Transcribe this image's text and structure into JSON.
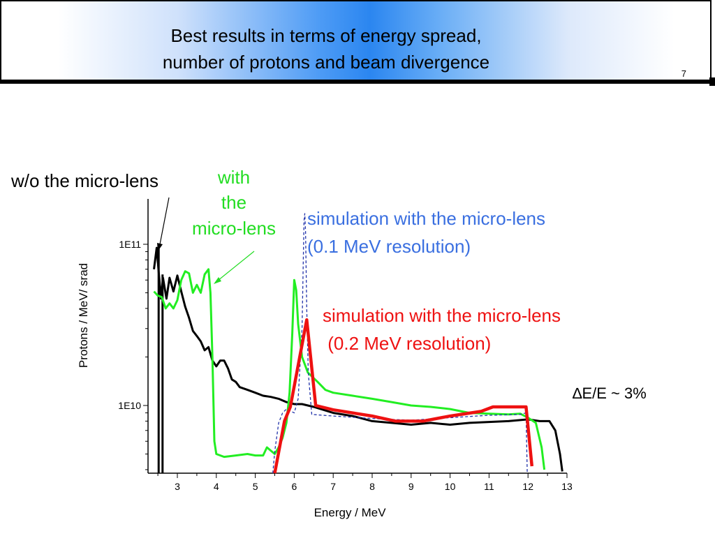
{
  "header": {
    "title_line1": "Best results in terms of energy spread,",
    "title_line2": "number of protons and beam divergence",
    "slide_number": "7"
  },
  "annotations": {
    "without_lens": "w/o the micro-lens",
    "with_lens_line1": "with",
    "with_lens_line2": "the",
    "with_lens_line3": "micro-lens",
    "sim1_line1": "simulation with the micro-lens",
    "sim1_line2": "(0.1 MeV resolution)",
    "sim2_line1": "simulation with the micro-lens",
    "sim2_line2": " (0.2 MeV resolution)",
    "delta_e": "∆E/E  ~ 3%"
  },
  "colors": {
    "without_lens": "#000000",
    "with_lens": "#22ee22",
    "sim_01": "#2233aa",
    "sim_02": "#ee1111",
    "sim1_label": "#3a6fe0",
    "with_label": "#22dd22"
  },
  "chart_data": {
    "type": "line",
    "title": "",
    "xlabel": "Energy / MeV",
    "ylabel": "Protons / MeV/ srad",
    "y_scale": "log",
    "xlim": [
      2.35,
      13.0
    ],
    "ylim": [
      3800000000.0,
      160000000000.0
    ],
    "x_ticks": [
      3,
      4,
      5,
      6,
      7,
      8,
      9,
      10,
      11,
      12,
      13
    ],
    "y_ticks": [
      {
        "value": 10000000000.0,
        "label": "1E10"
      },
      {
        "value": 100000000000.0,
        "label": "1E11"
      }
    ],
    "series": [
      {
        "key": "without_lens",
        "style": "solid",
        "points": [
          [
            2.4,
            70000000000.0
          ],
          [
            2.47,
            95000000000.0
          ],
          [
            2.52,
            68000000000.0
          ],
          [
            2.58,
            46000000000.0
          ],
          [
            2.63,
            62000000000.0
          ],
          [
            2.72,
            46000000000.0
          ],
          [
            2.8,
            62000000000.0
          ],
          [
            2.9,
            51000000000.0
          ],
          [
            3.0,
            64000000000.0
          ],
          [
            3.1,
            51000000000.0
          ],
          [
            3.2,
            41000000000.0
          ],
          [
            3.3,
            35000000000.0
          ],
          [
            3.4,
            29000000000.0
          ],
          [
            3.5,
            27000000000.0
          ],
          [
            3.6,
            25000000000.0
          ],
          [
            3.7,
            22000000000.0
          ],
          [
            3.8,
            23000000000.0
          ],
          [
            3.9,
            19000000000.0
          ],
          [
            4.0,
            17500000000.0
          ],
          [
            4.1,
            19000000000.0
          ],
          [
            4.2,
            19000000000.0
          ],
          [
            4.3,
            17000000000.0
          ],
          [
            4.4,
            14500000000.0
          ],
          [
            4.5,
            14000000000.0
          ],
          [
            4.6,
            13000000000.0
          ],
          [
            4.8,
            12500000000.0
          ],
          [
            5.0,
            12000000000.0
          ],
          [
            5.2,
            11500000000.0
          ],
          [
            5.4,
            11300000000.0
          ],
          [
            5.6,
            11000000000.0
          ],
          [
            5.8,
            10500000000.0
          ],
          [
            6.0,
            10200000000.0
          ],
          [
            6.2,
            10200000000.0
          ],
          [
            6.5,
            9800000000.0
          ],
          [
            7.0,
            9000000000.0
          ],
          [
            7.5,
            8600000000.0
          ],
          [
            8.0,
            8000000000.0
          ],
          [
            8.5,
            7800000000.0
          ],
          [
            9.0,
            7600000000.0
          ],
          [
            9.5,
            7800000000.0
          ],
          [
            10.0,
            7600000000.0
          ],
          [
            10.5,
            7800000000.0
          ],
          [
            11.0,
            7900000000.0
          ],
          [
            11.5,
            8000000000.0
          ],
          [
            12.0,
            8200000000.0
          ],
          [
            12.3,
            8000000000.0
          ],
          [
            12.55,
            8000000000.0
          ],
          [
            12.7,
            7000000000.0
          ],
          [
            12.82,
            5000000000.0
          ],
          [
            12.88,
            3900000000.0
          ]
        ]
      },
      {
        "key": "with_lens",
        "style": "solid",
        "points": [
          [
            2.4,
            51000000000.0
          ],
          [
            2.5,
            48000000000.0
          ],
          [
            2.6,
            47000000000.0
          ],
          [
            2.7,
            40000000000.0
          ],
          [
            2.8,
            43000000000.0
          ],
          [
            2.9,
            40000000000.0
          ],
          [
            3.0,
            45000000000.0
          ],
          [
            3.1,
            60000000000.0
          ],
          [
            3.2,
            68000000000.0
          ],
          [
            3.3,
            66000000000.0
          ],
          [
            3.4,
            50000000000.0
          ],
          [
            3.5,
            56000000000.0
          ],
          [
            3.6,
            50000000000.0
          ],
          [
            3.7,
            65000000000.0
          ],
          [
            3.8,
            70000000000.0
          ],
          [
            3.85,
            50000000000.0
          ],
          [
            3.9,
            20000000000.0
          ],
          [
            3.95,
            6000000000.0
          ],
          [
            4.0,
            5000000000.0
          ],
          [
            4.2,
            4800000000.0
          ],
          [
            4.5,
            4900000000.0
          ],
          [
            4.8,
            5000000000.0
          ],
          [
            5.0,
            4900000000.0
          ],
          [
            5.2,
            4900000000.0
          ],
          [
            5.3,
            5500000000.0
          ],
          [
            5.5,
            5000000000.0
          ],
          [
            5.6,
            5500000000.0
          ],
          [
            5.7,
            6300000000.0
          ],
          [
            5.8,
            7800000000.0
          ],
          [
            5.88,
            12000000000.0
          ],
          [
            5.95,
            28000000000.0
          ],
          [
            6.0,
            60000000000.0
          ],
          [
            6.05,
            52000000000.0
          ],
          [
            6.1,
            32000000000.0
          ],
          [
            6.2,
            20000000000.0
          ],
          [
            6.35,
            16000000000.0
          ],
          [
            6.6,
            14000000000.0
          ],
          [
            6.8,
            12500000000.0
          ],
          [
            7.0,
            12000000000.0
          ],
          [
            7.5,
            11500000000.0
          ],
          [
            8.0,
            11000000000.0
          ],
          [
            8.5,
            10500000000.0
          ],
          [
            9.0,
            10000000000.0
          ],
          [
            9.5,
            9800000000.0
          ],
          [
            10.0,
            9500000000.0
          ],
          [
            10.5,
            9000000000.0
          ],
          [
            11.0,
            8900000000.0
          ],
          [
            11.5,
            8800000000.0
          ],
          [
            11.8,
            8900000000.0
          ],
          [
            12.0,
            8400000000.0
          ],
          [
            12.2,
            7800000000.0
          ],
          [
            12.35,
            5500000000.0
          ],
          [
            12.42,
            4000000000.0
          ]
        ]
      },
      {
        "key": "sim_01",
        "style": "dashed",
        "points": [
          [
            5.45,
            3800000000.0
          ],
          [
            5.5,
            5200000000.0
          ],
          [
            5.6,
            7800000000.0
          ],
          [
            5.7,
            9000000000.0
          ],
          [
            5.8,
            9500000000.0
          ],
          [
            6.0,
            9000000000.0
          ],
          [
            6.1,
            11000000000.0
          ],
          [
            6.2,
            30000000000.0
          ],
          [
            6.25,
            140000000000.0
          ],
          [
            6.27,
            155000000000.0
          ],
          [
            6.29,
            120000000000.0
          ],
          [
            6.32,
            40000000000.0
          ],
          [
            6.36,
            16000000000.0
          ],
          [
            6.45,
            8800000000.0
          ],
          [
            7.0,
            8600000000.0
          ],
          [
            8.0,
            8300000000.0
          ],
          [
            9.0,
            8100000000.0
          ],
          [
            10.0,
            8400000000.0
          ],
          [
            11.0,
            8700000000.0
          ],
          [
            11.8,
            8800000000.0
          ],
          [
            11.95,
            9000000000.0
          ],
          [
            11.98,
            3800000000.0
          ]
        ]
      },
      {
        "key": "sim_02",
        "style": "solid-thick",
        "points": [
          [
            5.5,
            3800000000.0
          ],
          [
            5.75,
            8000000000.0
          ],
          [
            5.9,
            9800000000.0
          ],
          [
            6.32,
            34000000000.0
          ],
          [
            6.55,
            10000000000.0
          ],
          [
            7.0,
            9400000000.0
          ],
          [
            8.0,
            8600000000.0
          ],
          [
            8.6,
            8000000000.0
          ],
          [
            9.3,
            8000000000.0
          ],
          [
            10.0,
            8600000000.0
          ],
          [
            10.8,
            9200000000.0
          ],
          [
            11.1,
            9800000000.0
          ],
          [
            11.95,
            9800000000.0
          ],
          [
            12.1,
            4200000000.0
          ]
        ]
      }
    ]
  }
}
